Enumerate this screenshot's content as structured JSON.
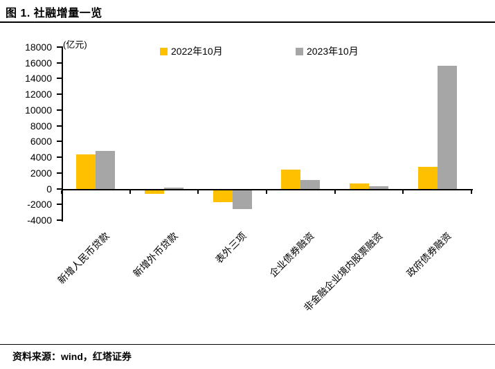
{
  "page": {
    "title": "图 1. 社融增量一览",
    "source": "资料来源：wind，红塔证券"
  },
  "chart_data": {
    "type": "bar",
    "title": "图 1. 社融增量一览",
    "unit_label": "(亿元)",
    "categories": [
      "新增人民币贷款",
      "新增外币贷款",
      "表外三项",
      "企业债券融资",
      "非金融企业境内股票融资",
      "政府债券融资"
    ],
    "series": [
      {
        "name": "2022年10月",
        "color": "#FFC000",
        "values": [
          4400,
          -700,
          -1700,
          2400,
          700,
          2800
        ]
      },
      {
        "name": "2023年10月",
        "color": "#A6A6A6",
        "values": [
          4800,
          100,
          -2600,
          1100,
          300,
          15600
        ]
      }
    ],
    "ylim": [
      -4000,
      18000
    ],
    "ytick_step": 2000,
    "ylabel": "",
    "xlabel": "",
    "grid": false,
    "legend_position": "top-center",
    "axis_color": "#000000"
  }
}
